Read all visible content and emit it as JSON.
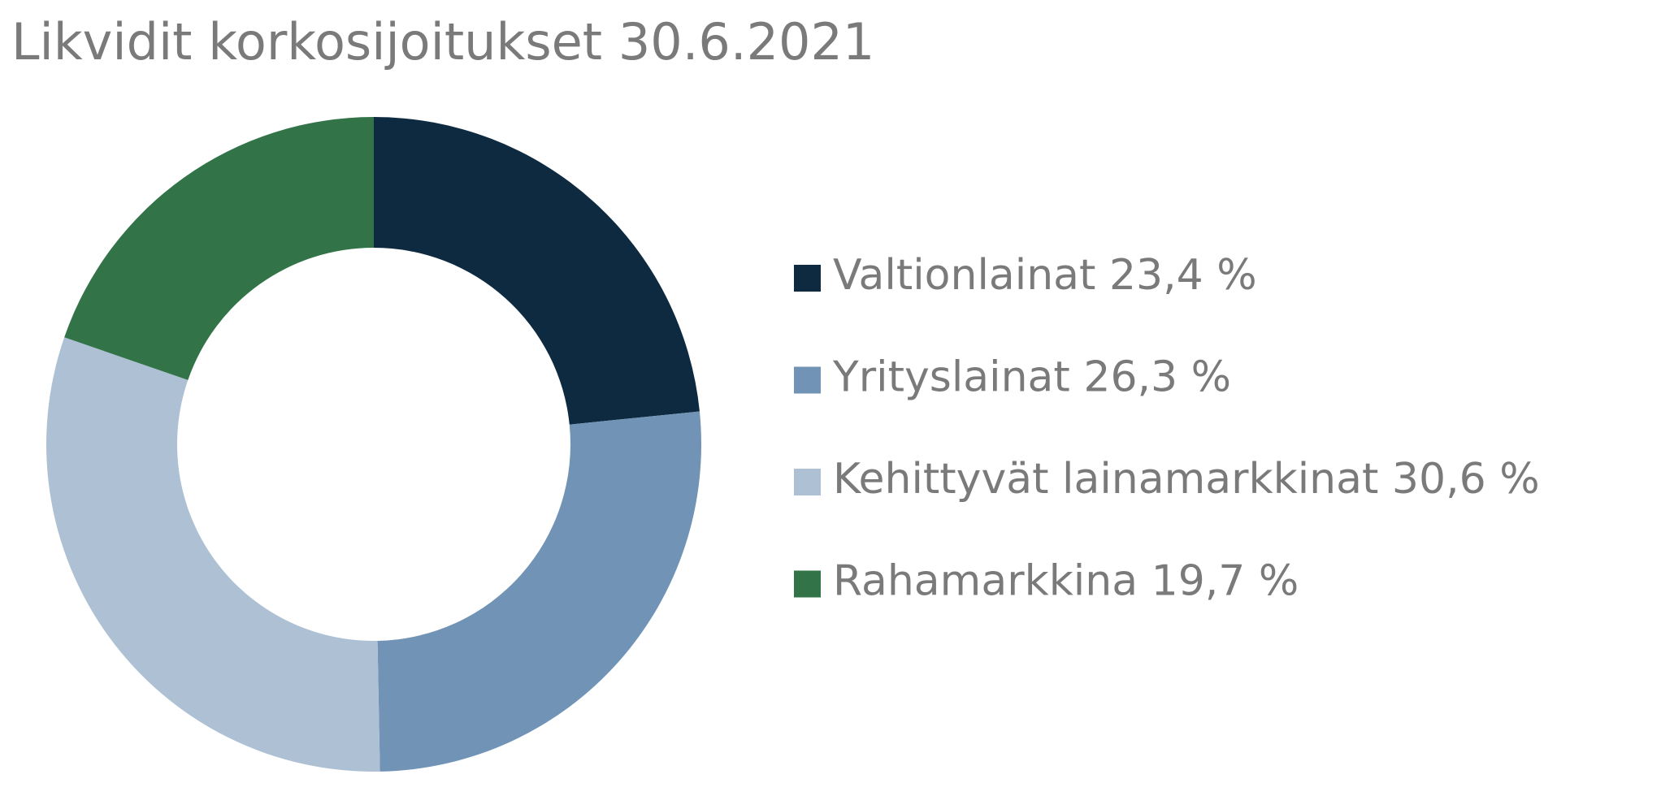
{
  "chart_data": {
    "type": "donut",
    "title": "Likvidit korkosijoitukset 30.6.2021",
    "categories": [
      "Valtionlainat",
      "Yrityslainat",
      "Kehittyvät lainamarkkinat",
      "Rahamarkkina"
    ],
    "values": [
      23.4,
      26.3,
      30.6,
      19.7
    ],
    "value_labels": [
      "23,4 %",
      "26,3 %",
      "30,6 %",
      "19,7 %"
    ],
    "colors": [
      "#0e2a40",
      "#7193b6",
      "#adc0d4",
      "#327448"
    ],
    "legend": "right"
  }
}
